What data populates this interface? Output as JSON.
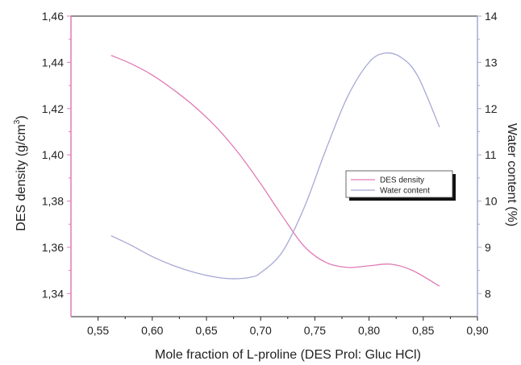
{
  "chart_data": {
    "type": "line",
    "xlabel": "Mole fraction of L-proline  (DES Prol: Gluc HCl)",
    "ylabel_left_main": "DES density (g/cm",
    "ylabel_left_sup": "3",
    "ylabel_left_end": ")",
    "ylabel_right": "Water content (%)",
    "xlim": [
      0.525,
      0.9
    ],
    "ylim_left": [
      1.33,
      1.46
    ],
    "ylim_right": [
      7.5,
      14
    ],
    "x_ticks": [
      {
        "value": 0.55,
        "label": "0,55"
      },
      {
        "value": 0.6,
        "label": "0,60"
      },
      {
        "value": 0.65,
        "label": "0,65"
      },
      {
        "value": 0.7,
        "label": "0,70"
      },
      {
        "value": 0.75,
        "label": "0,75"
      },
      {
        "value": 0.8,
        "label": "0,80"
      },
      {
        "value": 0.85,
        "label": "0,85"
      },
      {
        "value": 0.9,
        "label": "0,90"
      }
    ],
    "y_left_ticks": [
      {
        "value": 1.34,
        "label": "1,34"
      },
      {
        "value": 1.36,
        "label": "1,36"
      },
      {
        "value": 1.38,
        "label": "1,38"
      },
      {
        "value": 1.4,
        "label": "1,40"
      },
      {
        "value": 1.42,
        "label": "1,42"
      },
      {
        "value": 1.44,
        "label": "1,44"
      },
      {
        "value": 1.46,
        "label": "1,46"
      }
    ],
    "y_right_ticks": [
      {
        "value": 8,
        "label": "8"
      },
      {
        "value": 9,
        "label": "9"
      },
      {
        "value": 10,
        "label": "10"
      },
      {
        "value": 11,
        "label": "11"
      },
      {
        "value": 12,
        "label": "12"
      },
      {
        "value": 13,
        "label": "13"
      },
      {
        "value": 14,
        "label": "14"
      }
    ],
    "legend_position": "right",
    "series": [
      {
        "name": "DES density",
        "axis": "left",
        "color": "#e07ab6",
        "x": [
          0.562,
          0.58,
          0.6,
          0.62,
          0.64,
          0.66,
          0.68,
          0.7,
          0.72,
          0.74,
          0.76,
          0.78,
          0.8,
          0.82,
          0.84,
          0.865
        ],
        "y": [
          1.443,
          1.4395,
          1.4345,
          1.428,
          1.4205,
          1.4115,
          1.4005,
          1.3875,
          1.3735,
          1.3605,
          1.3535,
          1.3513,
          1.352,
          1.3527,
          1.35,
          1.3432
        ]
      },
      {
        "name": "Water content",
        "axis": "right",
        "color": "#a6a8d4",
        "x": [
          0.562,
          0.58,
          0.6,
          0.62,
          0.64,
          0.66,
          0.675,
          0.69,
          0.7,
          0.72,
          0.74,
          0.76,
          0.78,
          0.8,
          0.815,
          0.83,
          0.845,
          0.865
        ],
        "y": [
          9.25,
          9.05,
          8.8,
          8.6,
          8.45,
          8.35,
          8.32,
          8.35,
          8.45,
          8.9,
          9.85,
          11.1,
          12.25,
          13.0,
          13.2,
          13.1,
          12.7,
          11.6
        ]
      }
    ]
  }
}
